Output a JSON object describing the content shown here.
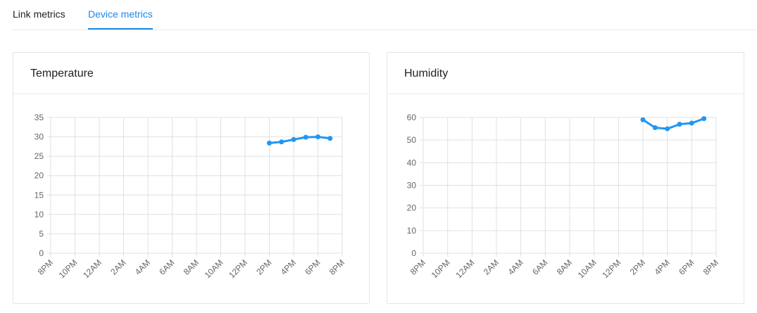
{
  "tabs": [
    {
      "label": "Link metrics",
      "active": false
    },
    {
      "label": "Device metrics",
      "active": true
    }
  ],
  "colors": {
    "accent": "#1e88e5",
    "series": "#2196f3",
    "grid": "#e0e0e0"
  },
  "cards": {
    "temperature": {
      "title": "Temperature"
    },
    "humidity": {
      "title": "Humidity"
    }
  },
  "chart_data": [
    {
      "type": "line",
      "title": "Temperature",
      "xlabel": "",
      "ylabel": "",
      "x_ticks": [
        "8PM",
        "10PM",
        "12AM",
        "2AM",
        "4AM",
        "6AM",
        "8AM",
        "10AM",
        "12PM",
        "2PM",
        "4PM",
        "6PM",
        "8PM"
      ],
      "y_ticks": [
        "35",
        "30",
        "25",
        "20",
        "15",
        "10",
        "5",
        "0"
      ],
      "ylim": [
        0,
        35
      ],
      "grid": true,
      "series": [
        {
          "x": [
            "2PM",
            "3PM",
            "4PM",
            "5PM",
            "6PM",
            "7PM"
          ],
          "values": [
            28.4,
            28.7,
            29.3,
            29.9,
            30.0,
            29.6
          ]
        }
      ]
    },
    {
      "type": "line",
      "title": "Humidity",
      "xlabel": "",
      "ylabel": "",
      "x_ticks": [
        "8PM",
        "10PM",
        "12AM",
        "2AM",
        "4AM",
        "6AM",
        "8AM",
        "10AM",
        "12PM",
        "2PM",
        "4PM",
        "6PM",
        "8PM"
      ],
      "y_ticks": [
        "60",
        "50",
        "40",
        "30",
        "20",
        "10",
        "0"
      ],
      "ylim": [
        0,
        60
      ],
      "grid": true,
      "series": [
        {
          "x": [
            "2PM",
            "3PM",
            "4PM",
            "5PM",
            "6PM",
            "7PM"
          ],
          "values": [
            59.0,
            55.5,
            55.0,
            57.0,
            57.5,
            59.5
          ]
        }
      ]
    }
  ]
}
